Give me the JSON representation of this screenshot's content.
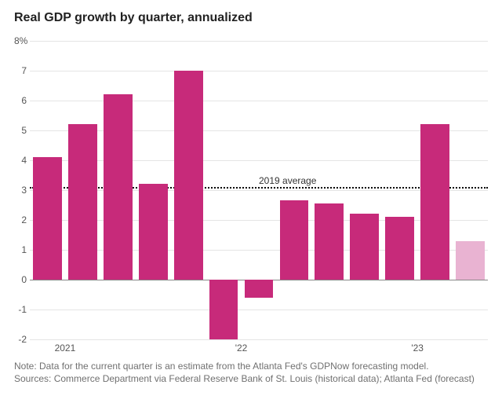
{
  "title": "Real GDP growth by quarter, annualized",
  "chart": {
    "type": "bar",
    "y": {
      "min": -2,
      "max": 8,
      "ticks": [
        -2,
        -1,
        0,
        1,
        2,
        3,
        4,
        5,
        6,
        7,
        8
      ],
      "tick_labels": [
        "-2",
        "-1",
        "0",
        "1",
        "2",
        "3",
        "4",
        "5",
        "6",
        "7",
        "8%"
      ],
      "label_fontsize": 12,
      "label_color": "#555555",
      "grid_color": "#e4e4e4",
      "zero_line_color": "#888888"
    },
    "x": {
      "labels": [
        {
          "index": 1,
          "text": "2021"
        },
        {
          "index": 6,
          "text": "'22"
        },
        {
          "index": 11,
          "text": "'23"
        }
      ],
      "label_fontsize": 12,
      "label_color": "#555555"
    },
    "bars": {
      "count": 13,
      "values": [
        4.1,
        5.2,
        6.2,
        3.2,
        7.0,
        -2.0,
        -0.6,
        2.65,
        2.55,
        2.2,
        2.1,
        5.2,
        1.3
      ],
      "colors": [
        "#c72a7a",
        "#c72a7a",
        "#c72a7a",
        "#c72a7a",
        "#c72a7a",
        "#c72a7a",
        "#c72a7a",
        "#c72a7a",
        "#c72a7a",
        "#c72a7a",
        "#c72a7a",
        "#c72a7a",
        "#e9b3d2"
      ],
      "gap_ratio": 0.18
    },
    "reference_line": {
      "value": 3.1,
      "label": "2019 average",
      "color": "#000000",
      "style": "dotted",
      "label_fontsize": 12,
      "label_x_ratio": 0.5
    },
    "background_color": "#ffffff"
  },
  "notes": {
    "line1": "Note: Data for the current quarter is an estimate from the Atlanta Fed's GDPNow forecasting model.",
    "line2": "Sources: Commerce Department via Federal Reserve Bank of St. Louis (historical data); Atlanta Fed (forecast)"
  }
}
